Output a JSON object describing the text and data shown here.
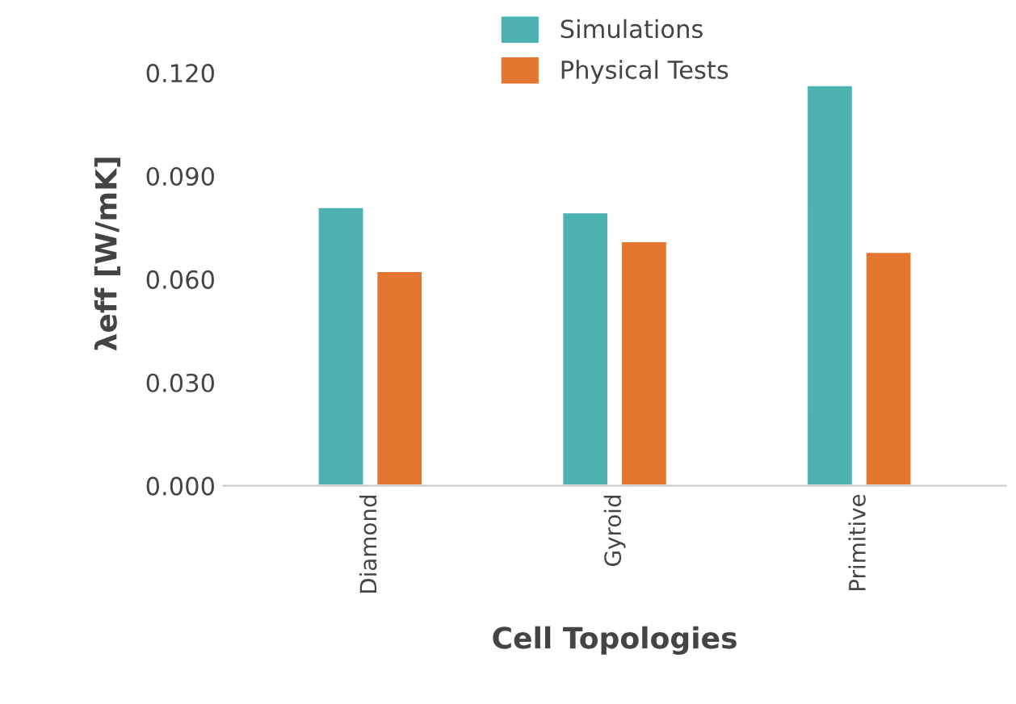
{
  "chart_data": {
    "type": "bar",
    "xlabel": "Cell Topologies",
    "ylabel": "λeff [W/mK]",
    "categories": [
      "Diamond",
      "Gyroid",
      "Primitive"
    ],
    "series": [
      {
        "name": "Simulations",
        "color": "#4bb1b1",
        "values": [
          0.081,
          0.0795,
          0.1164
        ]
      },
      {
        "name": "Physical Tests",
        "color": "#e5762f",
        "values": [
          0.0624,
          0.0711,
          0.068
        ]
      }
    ],
    "ylim": [
      0,
      0.135
    ],
    "yticks": [
      {
        "value": 0,
        "label": "0.000"
      },
      {
        "value": 0.03,
        "label": "0.030"
      },
      {
        "value": 0.06,
        "label": "0.060"
      },
      {
        "value": 0.09,
        "label": "0.090"
      },
      {
        "value": 0.12,
        "label": "0.120"
      }
    ],
    "grid": false,
    "legend": "top"
  }
}
